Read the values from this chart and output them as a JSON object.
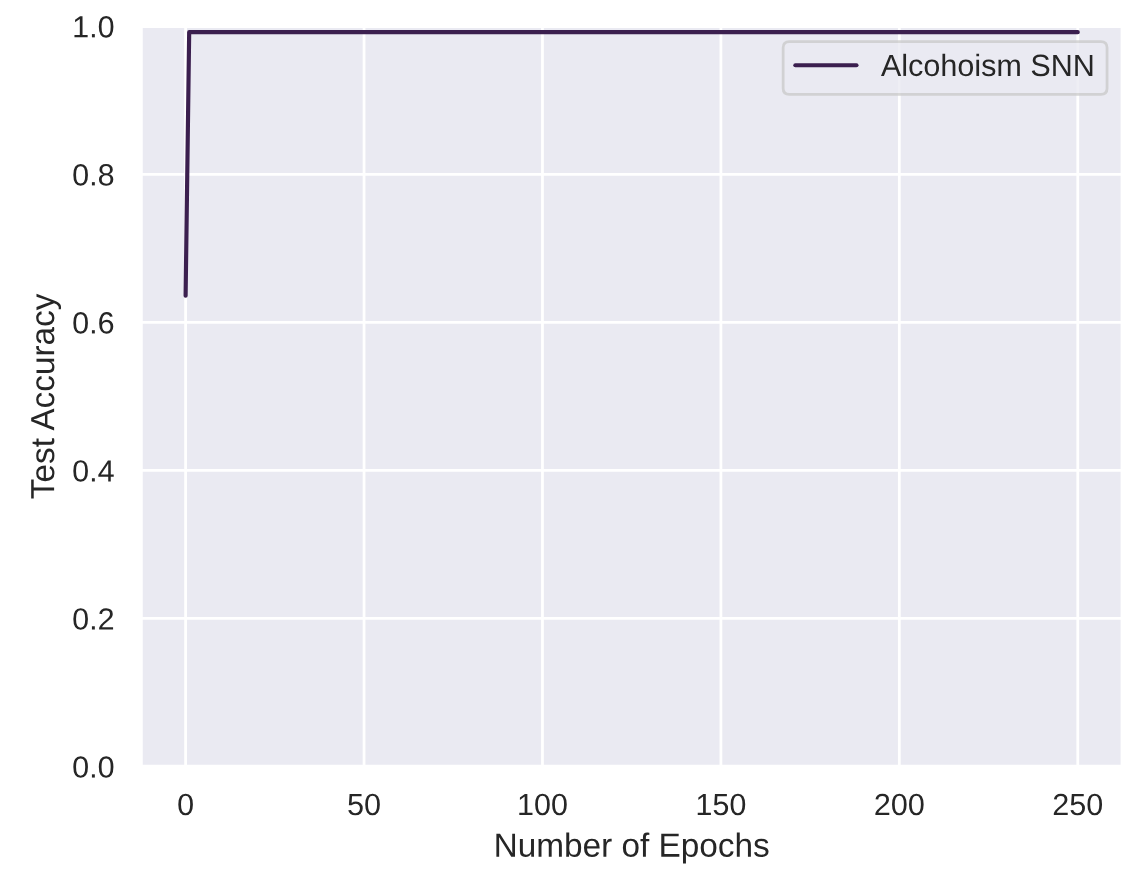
{
  "chart_data": {
    "type": "line",
    "xlabel": "Number of Epochs",
    "ylabel": "Test Accuracy",
    "series": [
      {
        "name": "Alcohoism SNN",
        "color": "#3b1f4f",
        "x": [
          0,
          1,
          250
        ],
        "values": [
          0.636,
          0.992,
          0.992
        ]
      }
    ],
    "xlim": [
      -12.5,
      262.5
    ],
    "xticks": [
      0,
      50,
      100,
      150,
      200,
      250
    ],
    "ylim": [
      0.0,
      1.0
    ],
    "yticks": [
      {
        "value": 0.0,
        "label": "0.0"
      },
      {
        "value": 0.2,
        "label": "0.2"
      },
      {
        "value": 0.4,
        "label": "0.4"
      },
      {
        "value": 0.6,
        "label": "0.6"
      },
      {
        "value": 0.8,
        "label": "0.8"
      },
      {
        "value": 1.0,
        "label": "1.0"
      }
    ],
    "grid": true,
    "legend": "top right",
    "marker": "none",
    "line_style": "solid"
  }
}
